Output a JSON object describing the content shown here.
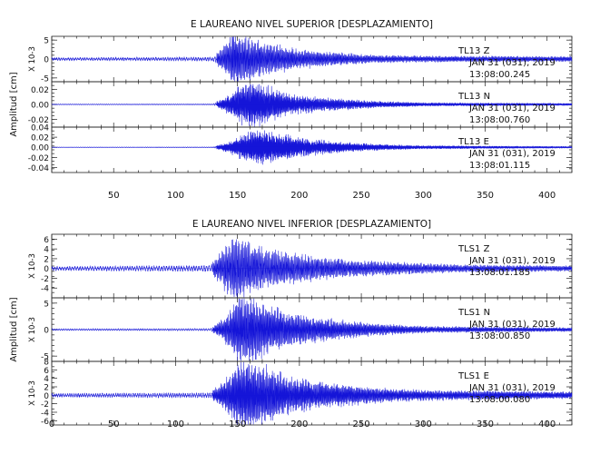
{
  "chart_data": [
    {
      "type": "line",
      "title": "E LAUREANO NIVEL SUPERIOR [DESPLAZAMIENTO]",
      "ylabel": "Amplitud [cm]",
      "xlim": [
        0,
        420
      ],
      "xticks": [
        "50",
        "100",
        "150",
        "200",
        "250",
        "300",
        "350",
        "400"
      ],
      "color": "#1515d8",
      "panels": [
        {
          "station": "TL13   Z",
          "date": "JAN 31 (031), 2019",
          "time": "13:08:00.245",
          "scale_label": "X 10-3",
          "ylim": [
            -6,
            6
          ],
          "yticks": [
            "5",
            "0",
            "-5"
          ],
          "peak": 6,
          "onset": 133,
          "noise": 0.12,
          "freq": 0.8,
          "envelope": [
            [
              0,
              0.07
            ],
            [
              130,
              0.1
            ],
            [
              136,
              0.35
            ],
            [
              148,
              1.0
            ],
            [
              160,
              0.75
            ],
            [
              172,
              0.6
            ],
            [
              185,
              0.5
            ],
            [
              200,
              0.35
            ],
            [
              230,
              0.25
            ],
            [
              260,
              0.15
            ],
            [
              300,
              0.12
            ],
            [
              420,
              0.1
            ]
          ]
        },
        {
          "station": "TL13   N",
          "date": "JAN 31 (031), 2019",
          "time": "13:08:00.760",
          "scale_label": "",
          "ylim": [
            -0.03,
            0.03
          ],
          "yticks": [
            "0.02",
            "0.00",
            "-0.02"
          ],
          "peak": 0.026,
          "onset": 133,
          "noise": 0.04,
          "freq": 1.0,
          "envelope": [
            [
              0,
              0.03
            ],
            [
              130,
              0.04
            ],
            [
              140,
              0.3
            ],
            [
              155,
              0.9
            ],
            [
              166,
              1.0
            ],
            [
              178,
              0.7
            ],
            [
              195,
              0.4
            ],
            [
              220,
              0.3
            ],
            [
              260,
              0.15
            ],
            [
              300,
              0.08
            ],
            [
              420,
              0.05
            ]
          ]
        },
        {
          "station": "TL13   E",
          "date": "JAN 31 (031), 2019",
          "time": "13:08:01.115",
          "scale_label": "",
          "ylim": [
            -0.05,
            0.04
          ],
          "yticks": [
            "0.04",
            "0.02",
            "0.00",
            "-0.02",
            "-0.04"
          ],
          "peak": 0.03,
          "onset": 133,
          "noise": 0.04,
          "freq": 1.1,
          "envelope": [
            [
              0,
              0.03
            ],
            [
              130,
              0.04
            ],
            [
              142,
              0.3
            ],
            [
              158,
              0.85
            ],
            [
              168,
              1.0
            ],
            [
              182,
              0.8
            ],
            [
              200,
              0.55
            ],
            [
              225,
              0.35
            ],
            [
              255,
              0.2
            ],
            [
              300,
              0.1
            ],
            [
              420,
              0.05
            ]
          ]
        }
      ]
    },
    {
      "type": "line",
      "title": "E LAUREANO NIVEL INFERIOR [DESPLAZAMIENTO]",
      "ylabel": "Amplitud [cm]",
      "xlim": [
        0,
        420
      ],
      "xticks": [
        "0",
        "50",
        "100",
        "150",
        "200",
        "250",
        "300",
        "350",
        "400"
      ],
      "color": "#1515d8",
      "panels": [
        {
          "station": "TLS1   Z",
          "date": "JAN 31 (031), 2019",
          "time": "13:08:01.185",
          "scale_label": "X 10-3",
          "ylim": [
            -6,
            7
          ],
          "yticks": [
            "6",
            "4",
            "2",
            "0",
            "-2",
            "-4"
          ],
          "peak": 6,
          "onset": 130,
          "noise": 0.12,
          "freq": 0.75,
          "envelope": [
            [
              0,
              0.08
            ],
            [
              128,
              0.12
            ],
            [
              134,
              0.35
            ],
            [
              148,
              1.0
            ],
            [
              160,
              0.75
            ],
            [
              175,
              0.55
            ],
            [
              200,
              0.4
            ],
            [
              240,
              0.25
            ],
            [
              280,
              0.18
            ],
            [
              320,
              0.12
            ],
            [
              420,
              0.08
            ]
          ]
        },
        {
          "station": "TLS1   N",
          "date": "JAN 31 (031), 2019",
          "time": "13:08:00.850",
          "scale_label": "X 10-3",
          "ylim": [
            -6,
            6
          ],
          "yticks": [
            "5",
            "0",
            "-5"
          ],
          "peak": 5.5,
          "onset": 130,
          "noise": 0.05,
          "freq": 0.85,
          "envelope": [
            [
              0,
              0.04
            ],
            [
              128,
              0.05
            ],
            [
              138,
              0.3
            ],
            [
              150,
              0.9
            ],
            [
              162,
              1.0
            ],
            [
              172,
              0.75
            ],
            [
              195,
              0.45
            ],
            [
              225,
              0.3
            ],
            [
              260,
              0.18
            ],
            [
              300,
              0.1
            ],
            [
              420,
              0.06
            ]
          ]
        },
        {
          "station": "TLS1   E",
          "date": "JAN 31 (031), 2019",
          "time": "13:08:00.080",
          "scale_label": "X 10-3",
          "ylim": [
            -7,
            8
          ],
          "yticks": [
            "8",
            "6",
            "4",
            "2",
            "0",
            "-2",
            "-4",
            "-6"
          ],
          "peak": 7,
          "onset": 130,
          "noise": 0.1,
          "freq": 0.9,
          "envelope": [
            [
              0,
              0.08
            ],
            [
              128,
              0.1
            ],
            [
              136,
              0.3
            ],
            [
              150,
              0.9
            ],
            [
              160,
              1.0
            ],
            [
              172,
              0.8
            ],
            [
              195,
              0.5
            ],
            [
              225,
              0.35
            ],
            [
              260,
              0.22
            ],
            [
              300,
              0.15
            ],
            [
              420,
              0.1
            ]
          ]
        }
      ]
    }
  ]
}
